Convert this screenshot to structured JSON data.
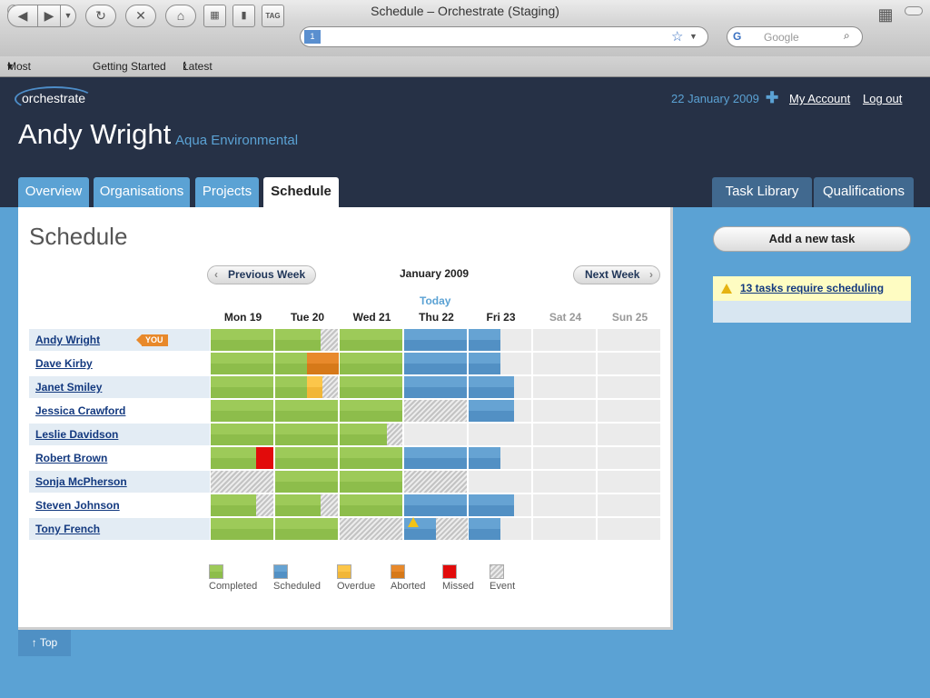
{
  "window": {
    "title": "Schedule – Orchestrate (Staging)"
  },
  "browser": {
    "search_placeholder": "Google",
    "tag_label": "TAG",
    "tab_count": "1",
    "bookmarks": [
      "Most Visited",
      "Getting Started",
      "Latest Headlines"
    ]
  },
  "app": {
    "logo": "orchestrate",
    "user_name": "Andy Wright",
    "organisation": "Aqua Environmental",
    "date": "22 January 2009",
    "my_account": "My Account",
    "log_out": "Log out"
  },
  "tabs": {
    "left": [
      "Overview",
      "Organisations",
      "Projects",
      "Schedule"
    ],
    "right": [
      "Task Library",
      "Qualifications"
    ],
    "active": "Schedule"
  },
  "schedule": {
    "title": "Schedule",
    "prev_week": "Previous Week",
    "next_week": "Next Week",
    "month": "January 2009",
    "today_label": "Today",
    "days": [
      "Mon 19",
      "Tue 20",
      "Wed 21",
      "Thu 22",
      "Fri 23",
      "Sat 24",
      "Sun 25"
    ],
    "you_badge": "YOU",
    "people": [
      "Andy Wright",
      "Dave Kirby",
      "Janet Smiley",
      "Jessica Crawford",
      "Leslie Davidson",
      "Robert Brown",
      "Sonja McPherson",
      "Steven Johnson",
      "Tony French"
    ],
    "grid": [
      [
        [
          [
            "completed",
            1
          ]
        ],
        [
          [
            "completed",
            0.73
          ],
          [
            "event",
            0.27
          ]
        ],
        [
          [
            "completed",
            1
          ]
        ],
        [
          [
            "scheduled",
            1
          ]
        ],
        [
          [
            "scheduled",
            0.5
          ]
        ],
        [],
        []
      ],
      [
        [
          [
            "completed",
            1
          ]
        ],
        [
          [
            "completed",
            0.5
          ],
          [
            "aborted",
            0.5
          ]
        ],
        [
          [
            "completed",
            1
          ]
        ],
        [
          [
            "scheduled",
            1
          ]
        ],
        [
          [
            "scheduled",
            0.5
          ]
        ],
        [],
        []
      ],
      [
        [
          [
            "completed",
            1
          ]
        ],
        [
          [
            "completed",
            0.5
          ],
          [
            "overdue",
            0.25
          ],
          [
            "event",
            0.25
          ]
        ],
        [
          [
            "completed",
            1
          ]
        ],
        [
          [
            "scheduled",
            1
          ]
        ],
        [
          [
            "scheduled",
            0.73
          ]
        ],
        [],
        []
      ],
      [
        [
          [
            "completed",
            1
          ]
        ],
        [
          [
            "completed",
            1
          ]
        ],
        [
          [
            "completed",
            1
          ]
        ],
        [
          [
            "event",
            1
          ]
        ],
        [
          [
            "scheduled",
            0.73
          ]
        ],
        [],
        []
      ],
      [
        [
          [
            "completed",
            1
          ]
        ],
        [
          [
            "completed",
            1
          ]
        ],
        [
          [
            "completed",
            0.75
          ],
          [
            "event",
            0.25
          ]
        ],
        [],
        [],
        [],
        []
      ],
      [
        [
          [
            "completed",
            0.73
          ],
          [
            "missed",
            0.27
          ]
        ],
        [
          [
            "completed",
            1
          ]
        ],
        [
          [
            "completed",
            1
          ]
        ],
        [
          [
            "scheduled",
            1
          ]
        ],
        [
          [
            "scheduled",
            0.5
          ]
        ],
        [],
        []
      ],
      [
        [
          [
            "event",
            1
          ]
        ],
        [
          [
            "completed",
            1
          ]
        ],
        [
          [
            "completed",
            1
          ]
        ],
        [
          [
            "event",
            1
          ]
        ],
        [],
        [],
        []
      ],
      [
        [
          [
            "completed",
            0.73
          ],
          [
            "event",
            0.27
          ]
        ],
        [
          [
            "completed",
            0.73
          ],
          [
            "event",
            0.27
          ]
        ],
        [
          [
            "completed",
            1
          ]
        ],
        [
          [
            "scheduled",
            1
          ]
        ],
        [
          [
            "scheduled",
            0.73
          ]
        ],
        [],
        []
      ],
      [
        [
          [
            "completed",
            1
          ]
        ],
        [
          [
            "completed",
            1
          ]
        ],
        [
          [
            "event",
            1
          ]
        ],
        [
          [
            "scheduled",
            0.5
          ],
          [
            "event",
            0.5
          ]
        ],
        [
          [
            "scheduled",
            0.5
          ]
        ],
        [],
        []
      ]
    ],
    "legend": [
      {
        "key": "completed",
        "label": "Completed"
      },
      {
        "key": "scheduled",
        "label": "Scheduled"
      },
      {
        "key": "overdue",
        "label": "Overdue"
      },
      {
        "key": "aborted",
        "label": "Aborted"
      },
      {
        "key": "missed",
        "label": "Missed"
      },
      {
        "key": "event",
        "label": "Event"
      }
    ]
  },
  "sidebar": {
    "add_task": "Add a new task",
    "notice": "13 tasks require scheduling"
  },
  "footer": {
    "top_link": "↑ Top"
  },
  "colors": {
    "header_bg": "#263146",
    "accent_blue": "#5ba2d4",
    "completed": "#9dca59",
    "scheduled": "#66a3d3",
    "overdue": "#fcc64a",
    "aborted": "#e8892b",
    "missed": "#e20b0b"
  }
}
